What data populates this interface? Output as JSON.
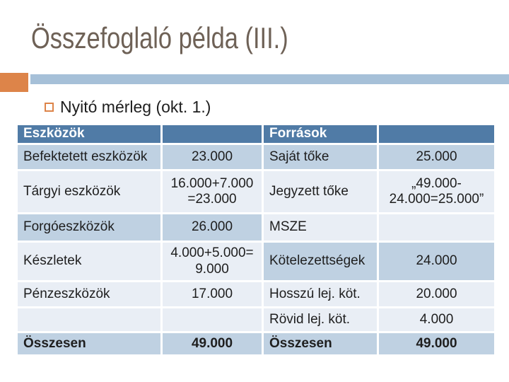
{
  "slide": {
    "title": "Összefoglaló példa (III.)",
    "bullet_text": "Nyitó mérleg (okt. 1.)"
  },
  "colors": {
    "accent_orange": "#dd8449",
    "accent_bar_blue": "#a6c0d8",
    "table_header_blue": "#507ba6",
    "band_light_blue": "#bfd1e2",
    "band_pale_blue": "#e9eef5",
    "title_text": "#6e6156",
    "body_text": "#1e1e1e"
  },
  "table": {
    "header_assets": "Eszközök",
    "header_sources": "Források",
    "rows": [
      {
        "asset_label": "Befektetett eszközök",
        "asset_value": "23.000",
        "source_label": "Saját tőke",
        "source_value": "25.000"
      },
      {
        "asset_label": "Tárgyi eszközök",
        "asset_value": "16.000+7.000\n=23.000",
        "source_label": "Jegyzett tőke",
        "source_value": "„49.000-\n24.000=25.000”"
      },
      {
        "asset_label": "Forgóeszközök",
        "asset_value": "26.000",
        "source_label": "MSZE",
        "source_value": ""
      },
      {
        "asset_label": "Készletek",
        "asset_value": "4.000+5.000=\n9.000",
        "source_label": "Kötelezettségek",
        "source_value": "24.000"
      },
      {
        "asset_label": "Pénzeszközök",
        "asset_value": "17.000",
        "source_label": "Hosszú lej. köt.",
        "source_value": "20.000"
      },
      {
        "asset_label": "",
        "asset_value": "",
        "source_label": "Rövid lej. köt.",
        "source_value": "4.000"
      },
      {
        "asset_label": "Összesen",
        "asset_value": "49.000",
        "source_label": "Összesen",
        "source_value": "49.000"
      }
    ]
  }
}
